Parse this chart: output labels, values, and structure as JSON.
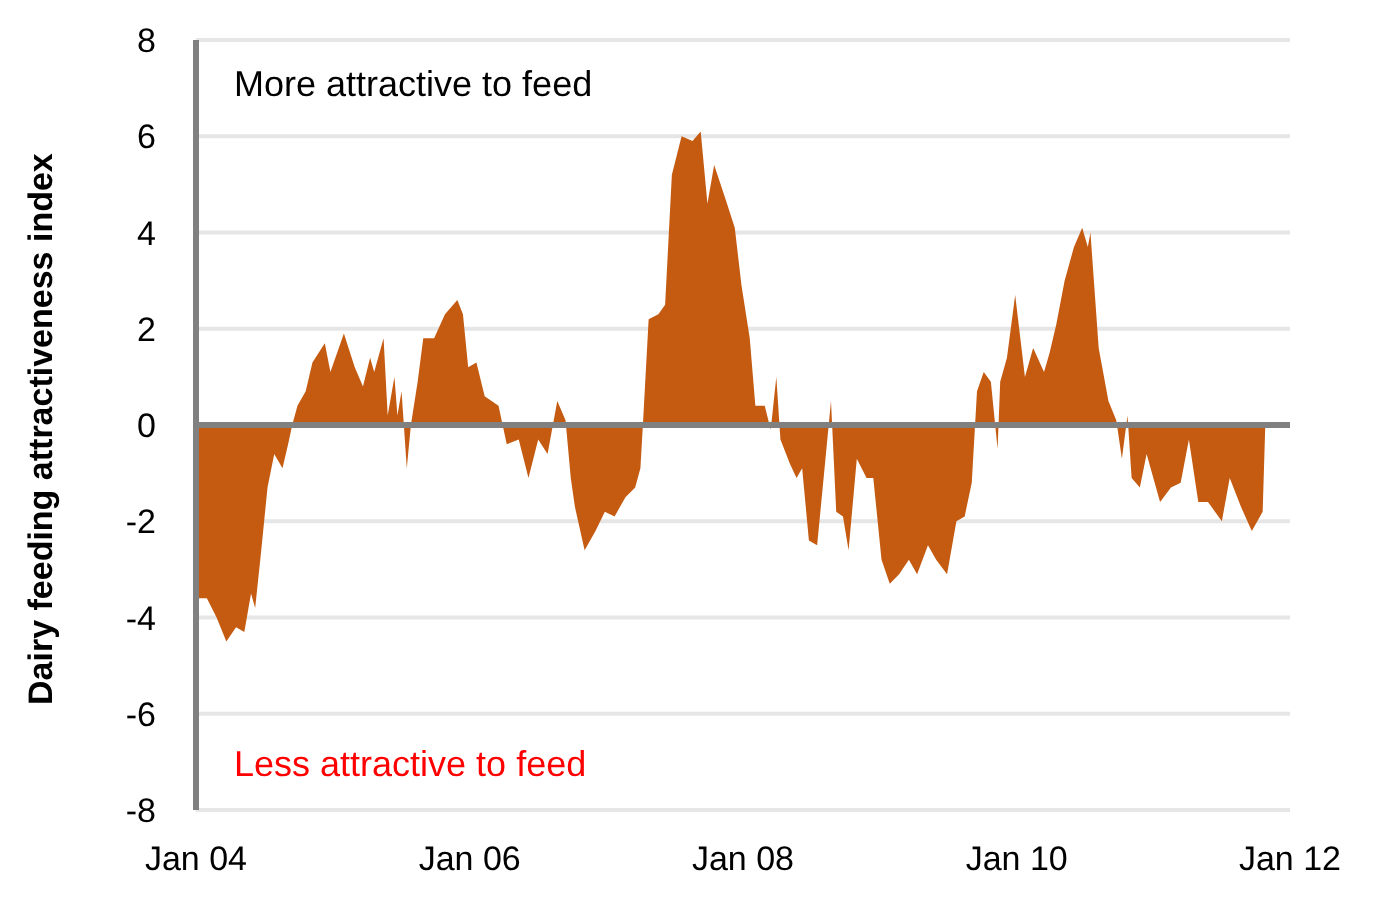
{
  "chart_data": {
    "type": "area",
    "ylabel": "Dairy feeding attractiveness index",
    "annotations": [
      "More attractive to feed",
      "Less attractive to feed"
    ],
    "x": [
      "2004-01-01",
      "2004-01-30",
      "2004-02-25",
      "2004-03-22",
      "2004-04-17",
      "2004-05-09",
      "2004-05-27",
      "2004-06-07",
      "2004-06-22",
      "2004-07-10",
      "2004-07-28",
      "2004-08-19",
      "2004-09-03",
      "2004-09-14",
      "2004-09-28",
      "2004-10-20",
      "2004-11-07",
      "2004-12-10",
      "2004-12-25",
      "2005-01-30",
      "2005-02-28",
      "2005-03-22",
      "2005-04-10",
      "2005-04-21",
      "2005-05-16",
      "2005-05-27",
      "2005-06-14",
      "2005-06-22",
      "2005-07-03",
      "2005-07-17",
      "2005-07-28",
      "2005-08-15",
      "2005-08-30",
      "2005-09-28",
      "2005-10-27",
      "2005-11-18",
      "2005-11-29",
      "2005-12-14",
      "2005-12-28",
      "2006-01-19",
      "2006-02-10",
      "2006-03-19",
      "2006-04-10",
      "2006-05-12",
      "2006-06-07",
      "2006-07-03",
      "2006-07-28",
      "2006-08-23",
      "2006-09-14",
      "2006-09-28",
      "2006-10-09",
      "2006-11-04",
      "2006-12-03",
      "2006-12-28",
      "2007-01-23",
      "2007-02-21",
      "2007-03-19",
      "2007-04-02",
      "2007-04-10",
      "2007-04-24",
      "2007-05-20",
      "2007-06-07",
      "2007-06-25",
      "2007-07-21",
      "2007-08-19",
      "2007-09-10",
      "2007-09-28",
      "2007-10-16",
      "2007-11-15",
      "2007-12-10",
      "2007-12-28",
      "2008-01-19",
      "2008-02-03",
      "2008-02-28",
      "2008-03-15",
      "2008-03-30",
      "2008-04-10",
      "2008-05-05",
      "2008-05-23",
      "2008-06-07",
      "2008-06-25",
      "2008-07-17",
      "2008-08-12",
      "2008-08-23",
      "2008-09-06",
      "2008-09-24",
      "2008-10-09",
      "2008-10-31",
      "2008-11-26",
      "2008-12-14",
      "2009-01-05",
      "2009-01-27",
      "2009-02-21",
      "2009-03-19",
      "2009-04-10",
      "2009-05-09",
      "2009-05-31",
      "2009-06-29",
      "2009-07-24",
      "2009-08-15",
      "2009-09-03",
      "2009-09-17",
      "2009-10-05",
      "2009-10-24",
      "2009-11-11",
      "2009-11-18",
      "2009-12-06",
      "2009-12-28",
      "2010-01-23",
      "2010-02-14",
      "2010-03-15",
      "2010-03-30",
      "2010-04-17",
      "2010-05-09",
      "2010-06-03",
      "2010-06-25",
      "2010-07-10",
      "2010-07-17",
      "2010-08-08",
      "2010-09-03",
      "2010-09-24",
      "2010-10-09",
      "2010-10-24",
      "2010-11-04",
      "2010-11-26",
      "2010-12-14",
      "2011-01-19",
      "2011-02-17",
      "2011-03-15",
      "2011-04-06",
      "2011-05-01",
      "2011-05-27",
      "2011-07-03",
      "2011-07-24",
      "2011-08-23",
      "2011-09-21",
      "2011-10-20",
      "2011-10-27"
    ],
    "series": [
      {
        "color": "#c55a11",
        "values": [
          -3.6,
          -3.6,
          -4.0,
          -4.5,
          -4.2,
          -4.3,
          -3.5,
          -3.8,
          -2.7,
          -1.3,
          -0.6,
          -0.9,
          -0.4,
          0.0,
          0.4,
          0.7,
          1.3,
          1.7,
          1.1,
          1.9,
          1.2,
          0.8,
          1.4,
          1.1,
          1.8,
          0.2,
          1.0,
          0.2,
          0.7,
          -0.9,
          0.0,
          0.9,
          1.8,
          1.8,
          2.3,
          2.5,
          2.6,
          2.3,
          1.2,
          1.3,
          0.6,
          0.4,
          -0.4,
          -0.3,
          -1.1,
          -0.3,
          -0.6,
          0.5,
          0.1,
          -1.1,
          -1.7,
          -2.6,
          -2.2,
          -1.8,
          -1.9,
          -1.5,
          -1.3,
          -0.9,
          0.2,
          2.2,
          2.3,
          2.5,
          5.2,
          6.0,
          5.9,
          6.1,
          4.6,
          5.4,
          4.7,
          4.1,
          2.9,
          1.8,
          0.4,
          0.4,
          -0.1,
          1.0,
          -0.3,
          -0.8,
          -1.1,
          -0.9,
          -2.4,
          -2.5,
          -0.4,
          0.5,
          -1.8,
          -1.9,
          -2.6,
          -0.7,
          -1.1,
          -1.1,
          -2.8,
          -3.3,
          -3.1,
          -2.8,
          -3.1,
          -2.5,
          -2.8,
          -3.1,
          -2.0,
          -1.9,
          -1.2,
          0.7,
          1.1,
          0.9,
          -0.5,
          0.9,
          1.4,
          2.7,
          1.0,
          1.6,
          1.1,
          1.5,
          2.1,
          3.0,
          3.7,
          4.1,
          3.7,
          4.0,
          1.6,
          0.5,
          0.1,
          -0.7,
          0.2,
          -1.1,
          -1.3,
          -0.6,
          -1.6,
          -1.3,
          -1.2,
          -0.3,
          -1.6,
          -1.6,
          -2.0,
          -1.1,
          -1.7,
          -2.2,
          -1.8,
          0.0
        ]
      }
    ],
    "xlim": [
      "2004-01",
      "2012-01"
    ],
    "xticks": [
      {
        "value": "2004-01",
        "label": "Jan 04"
      },
      {
        "value": "2006-01",
        "label": "Jan 06"
      },
      {
        "value": "2008-01",
        "label": "Jan 08"
      },
      {
        "value": "2010-01",
        "label": "Jan 10"
      },
      {
        "value": "2012-01",
        "label": "Jan 12"
      }
    ],
    "ylim": [
      -8,
      8
    ],
    "yticks": [
      -8,
      -6,
      -4,
      -2,
      0,
      2,
      4,
      6,
      8
    ],
    "grid": "y",
    "ref_lines": [
      {
        "axis": "y",
        "value": 0,
        "color": "#808080"
      }
    ]
  }
}
